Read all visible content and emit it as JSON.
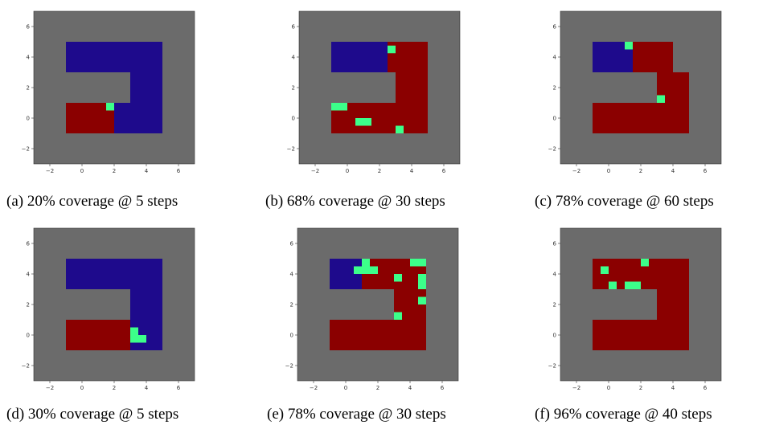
{
  "colors": {
    "background": "#6b6b6b",
    "covered": "#8b0000",
    "uncovered": "#1e0a8c",
    "agent": "#3cff8a",
    "axis_frame": "#333333"
  },
  "legend_semantics": {
    "covered": "dark red cells",
    "uncovered": "dark blue cells",
    "agent": "bright green cells"
  },
  "chart_data": [
    {
      "type": "heatmap",
      "caption": "(a) 20% coverage @ 5 steps",
      "xlim": [
        -3,
        7
      ],
      "ylim": [
        -3,
        7
      ],
      "xticks": [
        "−2",
        "0",
        "2",
        "4",
        "6"
      ],
      "yticks": [
        "−2",
        "0",
        "2",
        "4",
        "6"
      ],
      "cells": {
        "uncovered": [
          [
            -1,
            3,
            6,
            2
          ],
          [
            3,
            -1,
            2,
            4
          ],
          [
            2,
            -1,
            1,
            2
          ]
        ],
        "covered": [
          [
            -1,
            -1,
            3,
            2
          ]
        ],
        "agent": [
          [
            1.5,
            0.5,
            0.5,
            0.5
          ]
        ]
      }
    },
    {
      "type": "heatmap",
      "caption": "(b) 68% coverage @ 30 steps",
      "xlim": [
        -3,
        7
      ],
      "ylim": [
        -3,
        7
      ],
      "xticks": [
        "−2",
        "0",
        "2",
        "4",
        "6"
      ],
      "yticks": [
        "−2",
        "0",
        "2",
        "4",
        "6"
      ],
      "cells": {
        "covered": [
          [
            2.5,
            3,
            2.5,
            2
          ],
          [
            3,
            -1,
            2,
            4
          ],
          [
            -1,
            -1,
            4,
            2
          ]
        ],
        "uncovered": [
          [
            -1,
            3,
            3.5,
            2
          ],
          [
            -1,
            -1,
            0.5,
            1
          ],
          [
            -0.5,
            -1,
            0.5,
            0.5
          ]
        ],
        "agent": [
          [
            2.5,
            4.25,
            0.5,
            0.5
          ],
          [
            -1,
            0.5,
            1,
            0.5
          ],
          [
            0.5,
            -0.5,
            1,
            0.5
          ],
          [
            3,
            -1,
            0.5,
            0.5
          ]
        ]
      }
    },
    {
      "type": "heatmap",
      "caption": "(c) 78% coverage @ 60 steps",
      "xlim": [
        -3,
        7
      ],
      "ylim": [
        -3,
        7
      ],
      "xticks": [
        "−2",
        "0",
        "2",
        "4",
        "6"
      ],
      "yticks": [
        "−2",
        "0",
        "2",
        "4",
        "6"
      ],
      "cells": {
        "covered": [
          [
            1.5,
            3,
            2.5,
            2
          ],
          [
            3,
            -1,
            2,
            4
          ],
          [
            -1,
            -1,
            4,
            2
          ]
        ],
        "uncovered": [
          [
            -1,
            3,
            2.5,
            2
          ],
          [
            1.5,
            4,
            0.5,
            0.5
          ],
          [
            1.5,
            3.5,
            1,
            0.5
          ],
          [
            1.5,
            3,
            1.5,
            0.5
          ],
          [
            3.5,
            1,
            0.5,
            0.5
          ]
        ],
        "agent": [
          [
            1,
            4.5,
            0.5,
            0.5
          ],
          [
            3,
            1,
            0.5,
            0.5
          ]
        ]
      }
    },
    {
      "type": "heatmap",
      "caption": "(d) 30% coverage @ 5 steps",
      "xlim": [
        -3,
        7
      ],
      "ylim": [
        -3,
        7
      ],
      "xticks": [
        "−2",
        "0",
        "2",
        "4",
        "6"
      ],
      "yticks": [
        "−2",
        "0",
        "2",
        "4",
        "6"
      ],
      "cells": {
        "uncovered": [
          [
            -1,
            3,
            6,
            2
          ],
          [
            3,
            -1,
            2,
            4
          ]
        ],
        "covered": [
          [
            -1,
            -1,
            4,
            2
          ]
        ],
        "agent": [
          [
            3,
            0,
            0.5,
            0.5
          ],
          [
            3.5,
            -0.5,
            0.5,
            0.5
          ],
          [
            3,
            -0.5,
            0.5,
            0.5
          ]
        ]
      }
    },
    {
      "type": "heatmap",
      "caption": "(e) 78% coverage @ 30 steps",
      "xlim": [
        -3,
        7
      ],
      "ylim": [
        -3,
        7
      ],
      "xticks": [
        "−2",
        "0",
        "2",
        "4",
        "6"
      ],
      "yticks": [
        "−2",
        "0",
        "2",
        "4",
        "6"
      ],
      "cells": {
        "covered": [
          [
            1,
            3,
            4,
            2
          ],
          [
            3,
            -1,
            2,
            4
          ],
          [
            -1,
            -1,
            4,
            2
          ]
        ],
        "uncovered": [
          [
            -1,
            3,
            2,
            2
          ],
          [
            1,
            3,
            1,
            0.5
          ],
          [
            1.5,
            3.5,
            0.5,
            0.5
          ]
        ],
        "agent": [
          [
            1,
            4.5,
            0.5,
            0.5
          ],
          [
            0.5,
            4,
            1.5,
            0.5
          ],
          [
            4,
            4.5,
            1,
            0.5
          ],
          [
            3,
            3.5,
            0.5,
            0.5
          ],
          [
            4.5,
            3,
            0.5,
            1
          ],
          [
            4.5,
            2,
            0.5,
            0.5
          ],
          [
            3,
            1,
            0.5,
            0.5
          ]
        ]
      }
    },
    {
      "type": "heatmap",
      "caption": "(f) 96% coverage @ 40 steps",
      "xlim": [
        -3,
        7
      ],
      "ylim": [
        -3,
        7
      ],
      "xticks": [
        "−2",
        "0",
        "2",
        "4",
        "6"
      ],
      "yticks": [
        "−2",
        "0",
        "2",
        "4",
        "6"
      ],
      "cells": {
        "covered": [
          [
            -1,
            3,
            6,
            2
          ],
          [
            3,
            -1,
            2,
            4
          ],
          [
            -1,
            -1,
            4,
            2
          ]
        ],
        "uncovered": [
          [
            -1,
            3,
            4,
            0.5
          ]
        ],
        "agent": [
          [
            -0.5,
            4,
            0.5,
            0.5
          ],
          [
            2,
            4.5,
            0.5,
            0.5
          ],
          [
            0,
            3,
            0.5,
            0.5
          ],
          [
            1,
            3,
            1,
            0.5
          ]
        ]
      }
    }
  ]
}
